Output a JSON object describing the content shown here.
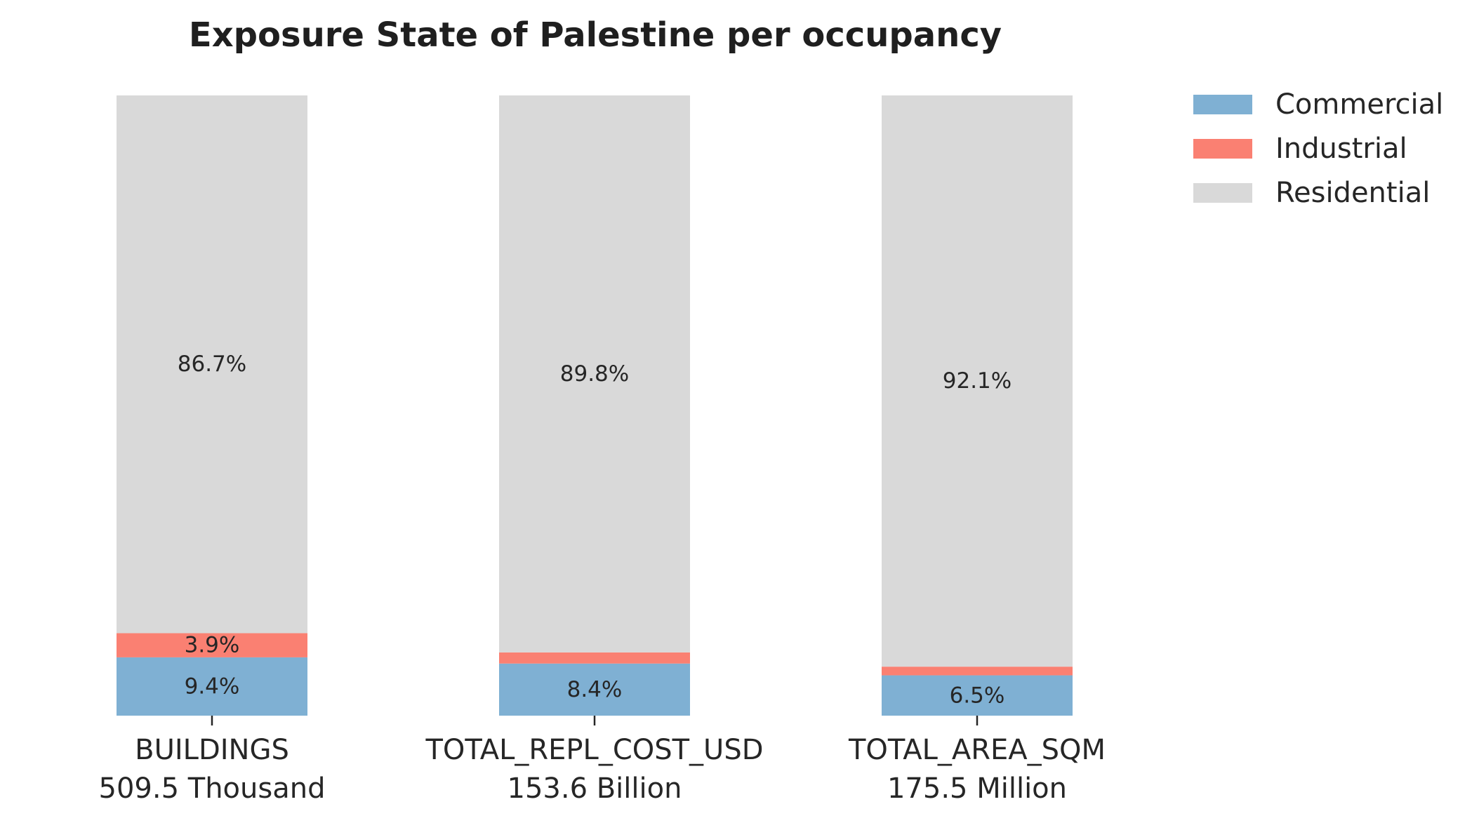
{
  "chart_data": {
    "type": "bar",
    "stacked": true,
    "normalized": true,
    "title": "Exposure State of Palestine per occupancy",
    "xlabel": "",
    "ylabel": "",
    "ylim": [
      0,
      100
    ],
    "grid": false,
    "legend_position": "top-right",
    "categories": [
      "BUILDINGS",
      "TOTAL_REPL_COST_USD",
      "TOTAL_AREA_SQM"
    ],
    "category_totals": [
      "509.5 Thousand",
      "153.6 Billion",
      "175.5 Million"
    ],
    "series": [
      {
        "name": "Commercial",
        "color": "#7fb0d3",
        "values": [
          9.4,
          8.4,
          6.5
        ],
        "labels": [
          "9.4%",
          "8.4%",
          "6.5%"
        ]
      },
      {
        "name": "Industrial",
        "color": "#fa8072",
        "values": [
          3.9,
          1.8,
          1.4
        ],
        "labels": [
          "3.9%",
          "",
          ""
        ]
      },
      {
        "name": "Residential",
        "color": "#d9d9d9",
        "values": [
          86.7,
          89.8,
          92.1
        ],
        "labels": [
          "86.7%",
          "89.8%",
          "92.1%"
        ]
      }
    ]
  }
}
